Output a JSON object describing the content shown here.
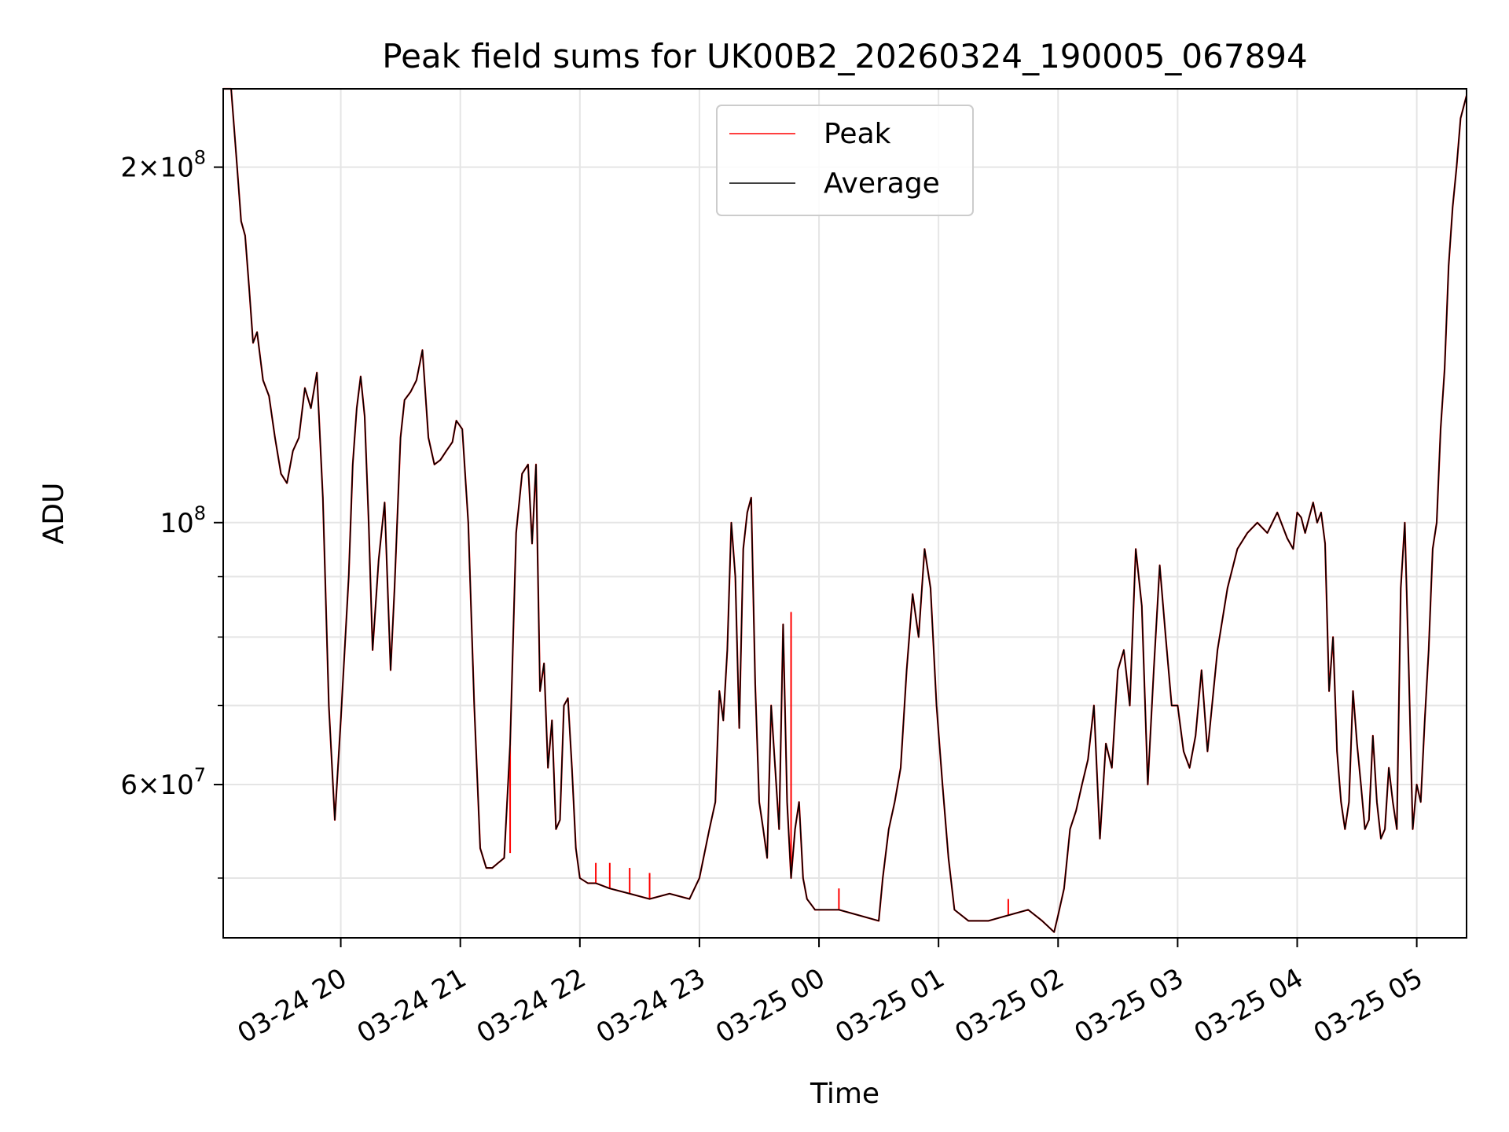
{
  "chart_data": {
    "type": "line",
    "title": "Peak field sums for UK00B2_20260324_190005_067894",
    "xlabel": "Time",
    "ylabel": "ADU",
    "yscale": "log",
    "grid": true,
    "legend_position": "upper-center",
    "xlim": [
      "2026-03-24 19:01",
      "2026-03-25 05:25"
    ],
    "ylim": [
      44500000,
      233000000
    ],
    "x_ticks": [
      {
        "t": "2026-03-24 20:00",
        "label": "03-24 20"
      },
      {
        "t": "2026-03-24 21:00",
        "label": "03-24 21"
      },
      {
        "t": "2026-03-24 22:00",
        "label": "03-24 22"
      },
      {
        "t": "2026-03-24 23:00",
        "label": "03-24 23"
      },
      {
        "t": "2026-03-25 00:00",
        "label": "03-25 00"
      },
      {
        "t": "2026-03-25 01:00",
        "label": "03-25 01"
      },
      {
        "t": "2026-03-25 02:00",
        "label": "03-25 02"
      },
      {
        "t": "2026-03-25 03:00",
        "label": "03-25 03"
      },
      {
        "t": "2026-03-25 04:00",
        "label": "03-25 04"
      },
      {
        "t": "2026-03-25 05:00",
        "label": "03-25 05"
      }
    ],
    "y_major_ticks": [
      {
        "v": 60000000,
        "mant": "6",
        "exp": "7"
      },
      {
        "v": 100000000,
        "mant": "",
        "exp": "8"
      },
      {
        "v": 200000000,
        "mant": "2",
        "exp": "8"
      }
    ],
    "y_minor_gridlines": [
      50000000,
      70000000,
      80000000,
      90000000
    ],
    "times_of_day": [
      "19:01",
      "19:05",
      "19:08",
      "19:10",
      "19:12",
      "19:14",
      "19:16",
      "19:18",
      "19:21",
      "19:24",
      "19:27",
      "19:30",
      "19:33",
      "19:36",
      "19:39",
      "19:42",
      "19:45",
      "19:48",
      "19:51",
      "19:54",
      "19:57",
      "20:00",
      "20:04",
      "20:06",
      "20:08",
      "20:10",
      "20:12",
      "20:14",
      "20:16",
      "20:19",
      "20:22",
      "20:25",
      "20:27",
      "20:30",
      "20:32",
      "20:35",
      "20:38",
      "20:41",
      "20:44",
      "20:47",
      "20:50",
      "20:53",
      "20:56",
      "20:58",
      "21:01",
      "21:04",
      "21:07",
      "21:10",
      "21:13",
      "21:16",
      "21:19",
      "21:22",
      "21:25",
      "21:28",
      "21:31",
      "21:34",
      "21:36",
      "21:38",
      "21:40",
      "21:42",
      "21:44",
      "21:46",
      "21:48",
      "21:50",
      "21:52",
      "21:54",
      "21:56",
      "21:58",
      "22:00",
      "22:04",
      "22:08",
      "22:15",
      "22:25",
      "22:35",
      "22:45",
      "22:55",
      "23:00",
      "23:05",
      "23:08",
      "23:10",
      "23:12",
      "23:14",
      "23:16",
      "23:18",
      "23:20",
      "23:22",
      "23:24",
      "23:26",
      "23:28",
      "23:30",
      "23:32",
      "23:34",
      "23:36",
      "23:38",
      "23:40",
      "23:42",
      "23:44",
      "23:46",
      "23:48",
      "23:50",
      "23:52",
      "23:54",
      "23:56",
      "23:58",
      "00:00",
      "00:10",
      "00:20",
      "00:30",
      "00:32",
      "00:35",
      "00:38",
      "00:41",
      "00:44",
      "00:47",
      "00:50",
      "00:53",
      "00:56",
      "00:59",
      "01:02",
      "01:05",
      "01:08",
      "01:15",
      "01:25",
      "01:35",
      "01:45",
      "01:52",
      "01:55",
      "01:58",
      "02:00",
      "02:03",
      "02:06",
      "02:09",
      "02:12",
      "02:15",
      "02:18",
      "02:21",
      "02:24",
      "02:27",
      "02:30",
      "02:33",
      "02:36",
      "02:39",
      "02:42",
      "02:45",
      "02:48",
      "02:51",
      "02:54",
      "02:57",
      "03:00",
      "03:03",
      "03:06",
      "03:09",
      "03:12",
      "03:15",
      "03:20",
      "03:25",
      "03:30",
      "03:35",
      "03:40",
      "03:45",
      "03:50",
      "03:55",
      "03:58",
      "04:00",
      "04:02",
      "04:04",
      "04:06",
      "04:08",
      "04:10",
      "04:12",
      "04:14",
      "04:16",
      "04:18",
      "04:20",
      "04:22",
      "04:24",
      "04:26",
      "04:28",
      "04:30",
      "04:32",
      "04:34",
      "04:36",
      "04:38",
      "04:40",
      "04:42",
      "04:44",
      "04:46",
      "04:48",
      "04:50",
      "04:52",
      "04:54",
      "04:56",
      "04:58",
      "05:00",
      "05:02",
      "05:04",
      "05:06",
      "05:08",
      "05:10",
      "05:12",
      "05:14",
      "05:16",
      "05:18",
      "05:20",
      "05:22",
      "05:25"
    ],
    "average_values": [
      233000000,
      233000000,
      200000000,
      180000000,
      175000000,
      158000000,
      142000000,
      145000000,
      132000000,
      128000000,
      118000000,
      110000000,
      108000000,
      115000000,
      118000000,
      130000000,
      125000000,
      134000000,
      105000000,
      70000000,
      56000000,
      68000000,
      90000000,
      112000000,
      125000000,
      133000000,
      123000000,
      100000000,
      78000000,
      93000000,
      104000000,
      75000000,
      88000000,
      118000000,
      127000000,
      129000000,
      132000000,
      140000000,
      118000000,
      112000000,
      113000000,
      115000000,
      117000000,
      122000000,
      120000000,
      100000000,
      70000000,
      53000000,
      51000000,
      51000000,
      51500000,
      52000000,
      65000000,
      98000000,
      110000000,
      112000000,
      96000000,
      112000000,
      72000000,
      76000000,
      62000000,
      68000000,
      55000000,
      56000000,
      70000000,
      71000000,
      62000000,
      53000000,
      50000000,
      49500000,
      49500000,
      49000000,
      48500000,
      48000000,
      48500000,
      48000000,
      50000000,
      55000000,
      58000000,
      72000000,
      68000000,
      78000000,
      100000000,
      90000000,
      67000000,
      95000000,
      102000000,
      105000000,
      73000000,
      58000000,
      55000000,
      52000000,
      70000000,
      62000000,
      55000000,
      82000000,
      58000000,
      50000000,
      55000000,
      58000000,
      50000000,
      48000000,
      47500000,
      47000000,
      47000000,
      47000000,
      46500000,
      46000000,
      50000000,
      55000000,
      58000000,
      62000000,
      75000000,
      87000000,
      80000000,
      95000000,
      88000000,
      70000000,
      60000000,
      52000000,
      47000000,
      46000000,
      46000000,
      46500000,
      47000000,
      46000000,
      45500000,
      45000000,
      46500000,
      49000000,
      55000000,
      57000000,
      60000000,
      63000000,
      70000000,
      54000000,
      65000000,
      62000000,
      75000000,
      78000000,
      70000000,
      95000000,
      85000000,
      60000000,
      75000000,
      92000000,
      80000000,
      70000000,
      70000000,
      64000000,
      62000000,
      66000000,
      75000000,
      64000000,
      78000000,
      88000000,
      95000000,
      98000000,
      100000000,
      98000000,
      102000000,
      97000000,
      95000000,
      102000000,
      101000000,
      98000000,
      101000000,
      104000000,
      100000000,
      102000000,
      96000000,
      72000000,
      80000000,
      64000000,
      58000000,
      55000000,
      58000000,
      72000000,
      65000000,
      60000000,
      55000000,
      56000000,
      66000000,
      58000000,
      54000000,
      55000000,
      62000000,
      58000000,
      55000000,
      88000000,
      100000000,
      75000000,
      55000000,
      60000000,
      58000000,
      68000000,
      78000000,
      95000000,
      100000000,
      120000000,
      135000000,
      165000000,
      185000000,
      200000000,
      220000000,
      230000000,
      233000000
    ],
    "peak_deltas": [
      {
        "t": "19:27",
        "v": 118000000
      },
      {
        "t": "21:25",
        "v": 52500000
      },
      {
        "t": "22:08",
        "v": 51500000
      },
      {
        "t": "22:15",
        "v": 51500000
      },
      {
        "t": "22:25",
        "v": 51000000
      },
      {
        "t": "22:35",
        "v": 50500000
      },
      {
        "t": "23:46",
        "v": 84000000
      },
      {
        "t": "00:10",
        "v": 49000000
      },
      {
        "t": "01:35",
        "v": 48000000
      }
    ],
    "series": [
      {
        "name": "Peak",
        "color": "#ff0000"
      },
      {
        "name": "Average",
        "color": "#000000"
      }
    ]
  }
}
